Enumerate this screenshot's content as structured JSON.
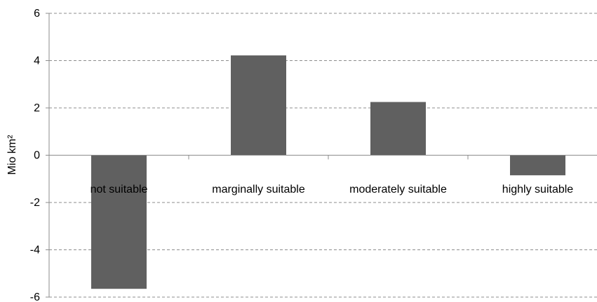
{
  "chart_data": {
    "type": "bar",
    "categories": [
      "not suitable",
      "marginally suitable",
      "moderately suitable",
      "highly suitable"
    ],
    "values": [
      -5.65,
      4.22,
      2.25,
      -0.85
    ],
    "title": "",
    "xlabel": "",
    "ylabel": "Mio km²",
    "ylim": [
      -6,
      6
    ],
    "yticks": [
      -6,
      -4,
      -2,
      0,
      2,
      4,
      6
    ],
    "grid": true,
    "legend": "none",
    "colors": {
      "bar": "#606060",
      "grid": "#8c8c8c",
      "axis": "#8c8c8c"
    }
  }
}
